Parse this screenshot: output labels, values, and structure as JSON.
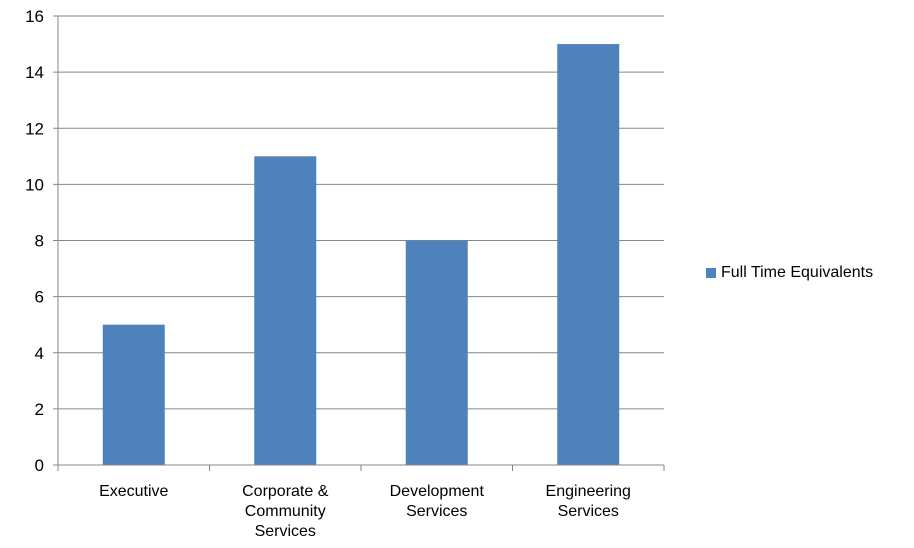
{
  "chart_data": {
    "type": "bar",
    "categories": [
      [
        "Executive"
      ],
      [
        "Corporate &",
        "Community",
        "Services"
      ],
      [
        "Development",
        "Services"
      ],
      [
        "Engineering",
        "Services"
      ]
    ],
    "series": [
      {
        "name": "Full Time Equivalents",
        "values": [
          5,
          11,
          8,
          15
        ],
        "color": "#4f81bd"
      }
    ],
    "ylim": [
      0,
      16
    ],
    "yticks": [
      0,
      2,
      4,
      6,
      8,
      10,
      12,
      14,
      16
    ],
    "grid": true,
    "legend_position": "right"
  }
}
